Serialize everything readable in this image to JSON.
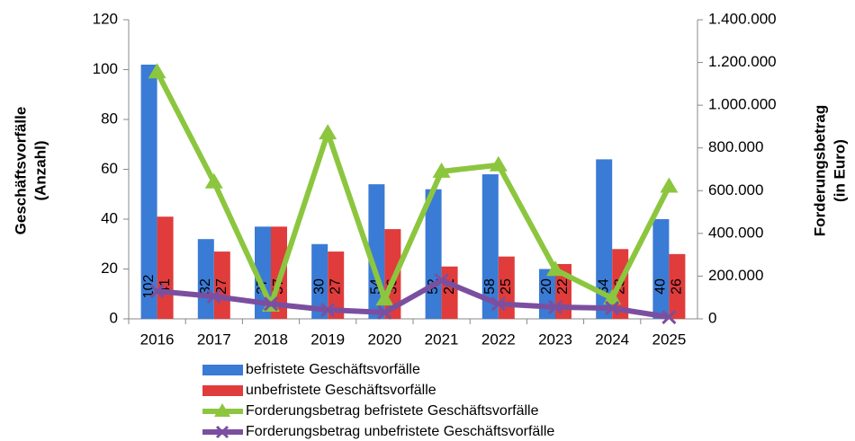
{
  "chart_data": {
    "type": "bar-line",
    "categories": [
      "2016",
      "2017",
      "2018",
      "2019",
      "2020",
      "2021",
      "2022",
      "2023",
      "2024",
      "2025"
    ],
    "series": [
      {
        "name": "befristete Geschäftsvorfälle",
        "color": "#3a7bd5",
        "type": "bar",
        "values": [
          102,
          32,
          37,
          30,
          54,
          52,
          58,
          20,
          64,
          40
        ]
      },
      {
        "name": "unbefristete Geschäftsvorfälle",
        "color": "#e03c3c",
        "type": "bar",
        "values": [
          41,
          27,
          37,
          27,
          36,
          21,
          25,
          22,
          28,
          26
        ]
      },
      {
        "name": "Forderungsbetrag befristete Geschäftsvorfälle",
        "color": "#8cc63f",
        "type": "line",
        "marker": "triangle",
        "axis": "y2",
        "values": [
          1155000,
          640000,
          63000,
          870000,
          92000,
          690000,
          720000,
          230000,
          97000,
          620000
        ]
      },
      {
        "name": "Forderungsbetrag unbefristete Geschäftsvorfälle",
        "color": "#7b4fa0",
        "type": "line",
        "marker": "x",
        "axis": "y2",
        "values": [
          130000,
          105000,
          70000,
          42000,
          30000,
          180000,
          70000,
          55000,
          50000,
          8000
        ]
      }
    ],
    "ylabel": [
      "Geschäftsvorfälle",
      "(Anzahl)"
    ],
    "y2label": [
      "Forderungsbetrag",
      "(in Euro)"
    ],
    "ylim": [
      0,
      120
    ],
    "yticks": [
      0,
      20,
      40,
      60,
      80,
      100,
      120
    ],
    "y2lim": [
      0,
      1400000
    ],
    "y2ticks": [
      0,
      {
        "value": 200000,
        "label": "200.000"
      },
      {
        "value": 400000,
        "label": "400.000"
      },
      {
        "value": 600000,
        "label": "600.000"
      },
      {
        "value": 800000,
        "label": "800.000"
      },
      {
        "value": 1000000,
        "label": "1.000.000"
      },
      {
        "value": 1200000,
        "label": "1.200.000"
      },
      {
        "value": 1400000,
        "label": "1.400.000"
      }
    ],
    "legend": "bottom"
  }
}
